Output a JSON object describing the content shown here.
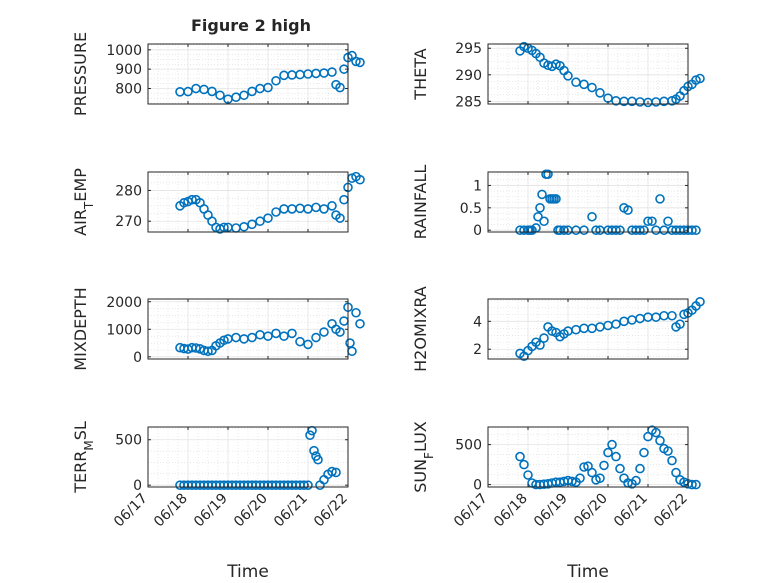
{
  "figure": {
    "title": "Figure 2 high",
    "marker_color": "#0072bd",
    "background": "#ffffff"
  },
  "chart_data": [
    {
      "id": "pressure",
      "type": "scatter",
      "title": "Figure 2 high",
      "xlabel": "",
      "ylabel": "PRESSURE",
      "xlim": [
        "06/17",
        "06/22"
      ],
      "ylim": [
        720,
        1030
      ],
      "yticks": [
        800,
        900,
        1000
      ],
      "xticklabels": [],
      "grid": true,
      "x_unit": "days from 06/17 00:00",
      "x": [
        0.8,
        1.0,
        1.2,
        1.4,
        1.6,
        1.8,
        2.0,
        2.2,
        2.4,
        2.6,
        2.8,
        3.0,
        3.2,
        3.4,
        3.6,
        3.8,
        4.0,
        4.2,
        4.4,
        4.6,
        4.7,
        4.8,
        4.9,
        5.0,
        5.1,
        5.2,
        5.3
      ],
      "y": [
        783,
        784,
        800,
        795,
        785,
        765,
        745,
        755,
        765,
        785,
        800,
        805,
        840,
        868,
        870,
        872,
        875,
        878,
        880,
        885,
        820,
        805,
        900,
        960,
        970,
        940,
        935
      ]
    },
    {
      "id": "theta",
      "type": "scatter",
      "xlabel": "",
      "ylabel": "THETA",
      "xlim": [
        "06/17",
        "06/22"
      ],
      "ylim": [
        284.5,
        295.8
      ],
      "yticks": [
        285,
        290,
        295
      ],
      "xticklabels": [],
      "grid": true,
      "x_unit": "days from 06/17 00:00",
      "x": [
        0.8,
        0.9,
        1.0,
        1.1,
        1.2,
        1.3,
        1.4,
        1.5,
        1.6,
        1.7,
        1.8,
        1.9,
        2.0,
        2.2,
        2.4,
        2.6,
        2.8,
        3.0,
        3.2,
        3.4,
        3.6,
        3.8,
        4.0,
        4.2,
        4.4,
        4.6,
        4.7,
        4.8,
        4.9,
        5.0,
        5.1,
        5.2,
        5.3
      ],
      "y": [
        294.5,
        295.3,
        295.0,
        294.6,
        294.0,
        293.3,
        292.2,
        291.8,
        291.6,
        292.0,
        291.7,
        290.8,
        289.8,
        288.6,
        288.2,
        287.6,
        286.6,
        285.6,
        285.1,
        285.0,
        285.0,
        284.9,
        284.8,
        284.9,
        285.0,
        285.1,
        285.4,
        286.0,
        287.0,
        287.8,
        288.2,
        289.0,
        289.3
      ]
    },
    {
      "id": "air_temp",
      "type": "scatter",
      "xlabel": "",
      "ylabel": "AIR_TEMP",
      "xlim": [
        "06/17",
        "06/22"
      ],
      "ylim": [
        266.5,
        286
      ],
      "yticks": [
        270,
        280
      ],
      "xticklabels": [],
      "grid": true,
      "x_unit": "days from 06/17 00:00",
      "x": [
        0.8,
        0.9,
        1.0,
        1.1,
        1.2,
        1.3,
        1.4,
        1.5,
        1.6,
        1.7,
        1.8,
        1.9,
        2.0,
        2.2,
        2.4,
        2.6,
        2.8,
        3.0,
        3.2,
        3.4,
        3.6,
        3.8,
        4.0,
        4.2,
        4.4,
        4.6,
        4.7,
        4.8,
        4.9,
        5.0,
        5.1,
        5.2,
        5.3
      ],
      "y": [
        275.0,
        276.0,
        276.4,
        277.0,
        277.0,
        276.0,
        274.0,
        272.0,
        270.0,
        268.0,
        267.5,
        268.0,
        268.0,
        267.8,
        268.2,
        269.0,
        270.0,
        271.0,
        273.0,
        274.0,
        274.0,
        274.2,
        274.0,
        274.5,
        274.0,
        275.0,
        272.0,
        271.0,
        277.0,
        281.0,
        284.0,
        284.5,
        283.5
      ]
    },
    {
      "id": "rainfall",
      "type": "scatter",
      "xlabel": "",
      "ylabel": "RAINFALL",
      "xlim": [
        "06/17",
        "06/22"
      ],
      "ylim": [
        -0.04,
        1.3
      ],
      "yticks": [
        0,
        0.5,
        1
      ],
      "yticklabels": [
        "0",
        "0.5",
        "1"
      ],
      "xticklabels": [],
      "grid": true,
      "x_unit": "days from 06/17 00:00",
      "x": [
        0.8,
        0.9,
        1.0,
        1.05,
        1.1,
        1.2,
        1.25,
        1.3,
        1.35,
        1.4,
        1.45,
        1.5,
        1.55,
        1.6,
        1.65,
        1.7,
        1.75,
        1.8,
        1.9,
        2.0,
        2.2,
        2.4,
        2.6,
        2.7,
        2.8,
        3.0,
        3.1,
        3.2,
        3.3,
        3.4,
        3.5,
        3.6,
        3.7,
        3.8,
        3.9,
        4.0,
        4.1,
        4.2,
        4.3,
        4.4,
        4.5,
        4.6,
        4.7,
        4.8,
        4.9,
        5.0,
        5.1,
        5.2
      ],
      "y": [
        0,
        0,
        0,
        0,
        0,
        0.05,
        0.3,
        0.5,
        0.8,
        0.2,
        1.25,
        1.25,
        0.7,
        0.7,
        0.7,
        0.7,
        0,
        0,
        0,
        0,
        0,
        0,
        0.3,
        0,
        0,
        0,
        0,
        0,
        0,
        0.5,
        0.45,
        0,
        0,
        0,
        0,
        0.2,
        0.2,
        0,
        0.7,
        0,
        0.2,
        0,
        0,
        0,
        0,
        0,
        0,
        0
      ]
    },
    {
      "id": "mixdepth",
      "type": "scatter",
      "xlabel": "",
      "ylabel": "MIXDEPTH",
      "xlim": [
        "06/17",
        "06/22"
      ],
      "ylim": [
        -80,
        2100
      ],
      "yticks": [
        0,
        1000,
        2000
      ],
      "xticklabels": [],
      "grid": true,
      "x_unit": "days from 06/17 00:00",
      "x": [
        0.8,
        0.9,
        1.0,
        1.1,
        1.2,
        1.3,
        1.4,
        1.5,
        1.6,
        1.7,
        1.8,
        1.9,
        2.0,
        2.2,
        2.4,
        2.6,
        2.8,
        3.0,
        3.2,
        3.4,
        3.6,
        3.8,
        4.0,
        4.2,
        4.4,
        4.6,
        4.7,
        4.8,
        4.9,
        5.0,
        5.05,
        5.1,
        5.2,
        5.3
      ],
      "y": [
        330,
        300,
        280,
        330,
        320,
        290,
        230,
        200,
        230,
        400,
        500,
        600,
        650,
        700,
        650,
        700,
        800,
        750,
        850,
        750,
        850,
        550,
        450,
        700,
        900,
        1200,
        1000,
        900,
        1300,
        1800,
        500,
        200,
        1600,
        1200
      ]
    },
    {
      "id": "h2omixra",
      "type": "scatter",
      "xlabel": "",
      "ylabel": "H2OMIXRA",
      "xlim": [
        "06/17",
        "06/22"
      ],
      "ylim": [
        1.3,
        5.6
      ],
      "yticks": [
        2,
        4
      ],
      "xticklabels": [],
      "grid": true,
      "x_unit": "days from 06/17 00:00",
      "x": [
        0.8,
        0.9,
        1.0,
        1.1,
        1.2,
        1.3,
        1.4,
        1.5,
        1.6,
        1.7,
        1.8,
        1.9,
        2.0,
        2.2,
        2.4,
        2.6,
        2.8,
        3.0,
        3.2,
        3.4,
        3.6,
        3.8,
        4.0,
        4.2,
        4.4,
        4.6,
        4.7,
        4.8,
        4.9,
        5.0,
        5.1,
        5.2,
        5.3
      ],
      "y": [
        1.7,
        1.5,
        1.9,
        2.2,
        2.5,
        2.3,
        2.8,
        3.6,
        3.3,
        3.2,
        2.9,
        3.1,
        3.3,
        3.4,
        3.5,
        3.5,
        3.6,
        3.7,
        3.8,
        4.0,
        4.1,
        4.2,
        4.3,
        4.3,
        4.4,
        4.4,
        3.6,
        3.8,
        4.5,
        4.6,
        4.8,
        5.1,
        5.4
      ]
    },
    {
      "id": "terr_msl",
      "type": "scatter",
      "xlabel": "Time",
      "ylabel": "TERR_MSL",
      "xlim": [
        "06/17",
        "06/22"
      ],
      "ylim": [
        -20,
        640
      ],
      "yticks": [
        0,
        500
      ],
      "xticks": [
        0,
        1,
        2,
        3,
        4,
        5
      ],
      "xticklabels": [
        "06/17",
        "06/18",
        "06/19",
        "06/20",
        "06/21",
        "06/22"
      ],
      "grid": true,
      "x_unit": "days from 06/17 00:00",
      "x": [
        0.8,
        0.9,
        1.0,
        1.1,
        1.2,
        1.3,
        1.4,
        1.5,
        1.6,
        1.7,
        1.8,
        1.9,
        2.0,
        2.1,
        2.2,
        2.3,
        2.4,
        2.5,
        2.6,
        2.7,
        2.8,
        2.9,
        3.0,
        3.1,
        3.2,
        3.3,
        3.4,
        3.5,
        3.6,
        3.7,
        3.8,
        3.9,
        4.0,
        4.05,
        4.1,
        4.15,
        4.2,
        4.25,
        4.3,
        4.4,
        4.5,
        4.6,
        4.7
      ],
      "y": [
        0,
        0,
        0,
        0,
        0,
        0,
        0,
        0,
        0,
        0,
        0,
        0,
        0,
        0,
        0,
        0,
        0,
        0,
        0,
        0,
        0,
        0,
        0,
        0,
        0,
        0,
        0,
        0,
        0,
        0,
        0,
        0,
        0,
        550,
        600,
        380,
        320,
        280,
        0,
        60,
        120,
        150,
        140
      ]
    },
    {
      "id": "sun_flux",
      "type": "scatter",
      "xlabel": "Time",
      "ylabel": "SUN_FLUX",
      "xlim": [
        "06/17",
        "06/22"
      ],
      "ylim": [
        -30,
        720
      ],
      "yticks": [
        0,
        500
      ],
      "xticks": [
        0,
        1,
        2,
        3,
        4,
        5
      ],
      "xticklabels": [
        "06/17",
        "06/18",
        "06/19",
        "06/20",
        "06/21",
        "06/22"
      ],
      "grid": true,
      "x_unit": "days from 06/17 00:00",
      "x": [
        0.8,
        0.9,
        1.0,
        1.1,
        1.2,
        1.3,
        1.4,
        1.5,
        1.6,
        1.7,
        1.8,
        1.9,
        2.0,
        2.1,
        2.2,
        2.3,
        2.4,
        2.5,
        2.6,
        2.7,
        2.8,
        2.9,
        3.0,
        3.1,
        3.2,
        3.3,
        3.4,
        3.5,
        3.6,
        3.7,
        3.8,
        3.9,
        4.0,
        4.1,
        4.2,
        4.3,
        4.4,
        4.5,
        4.6,
        4.7,
        4.8,
        4.9,
        5.0,
        5.1,
        5.2
      ],
      "y": [
        350,
        250,
        120,
        20,
        0,
        0,
        5,
        10,
        20,
        30,
        30,
        40,
        50,
        40,
        30,
        80,
        220,
        230,
        150,
        60,
        80,
        240,
        400,
        500,
        350,
        200,
        80,
        20,
        10,
        50,
        200,
        400,
        600,
        680,
        650,
        550,
        450,
        420,
        300,
        150,
        60,
        30,
        10,
        0,
        0
      ]
    }
  ]
}
